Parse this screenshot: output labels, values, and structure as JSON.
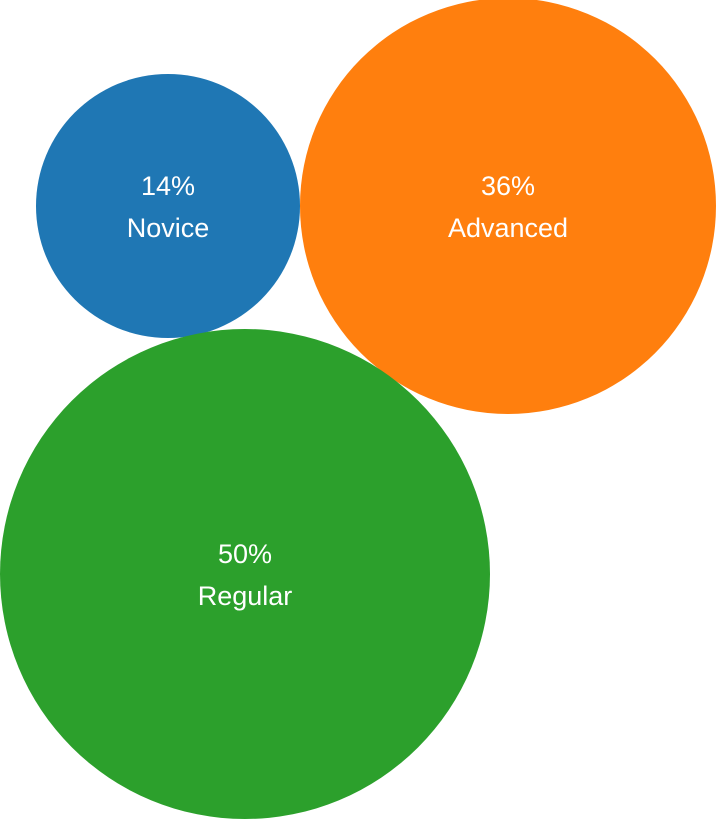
{
  "chart_data": {
    "type": "bubble",
    "title": "",
    "series": [
      {
        "name": "Novice",
        "value": 14,
        "label": "14%",
        "color": "#1f77b4"
      },
      {
        "name": "Advanced",
        "value": 36,
        "label": "36%",
        "color": "#ff7f0e"
      },
      {
        "name": "Regular",
        "value": 50,
        "label": "50%",
        "color": "#2ca02c"
      }
    ]
  }
}
